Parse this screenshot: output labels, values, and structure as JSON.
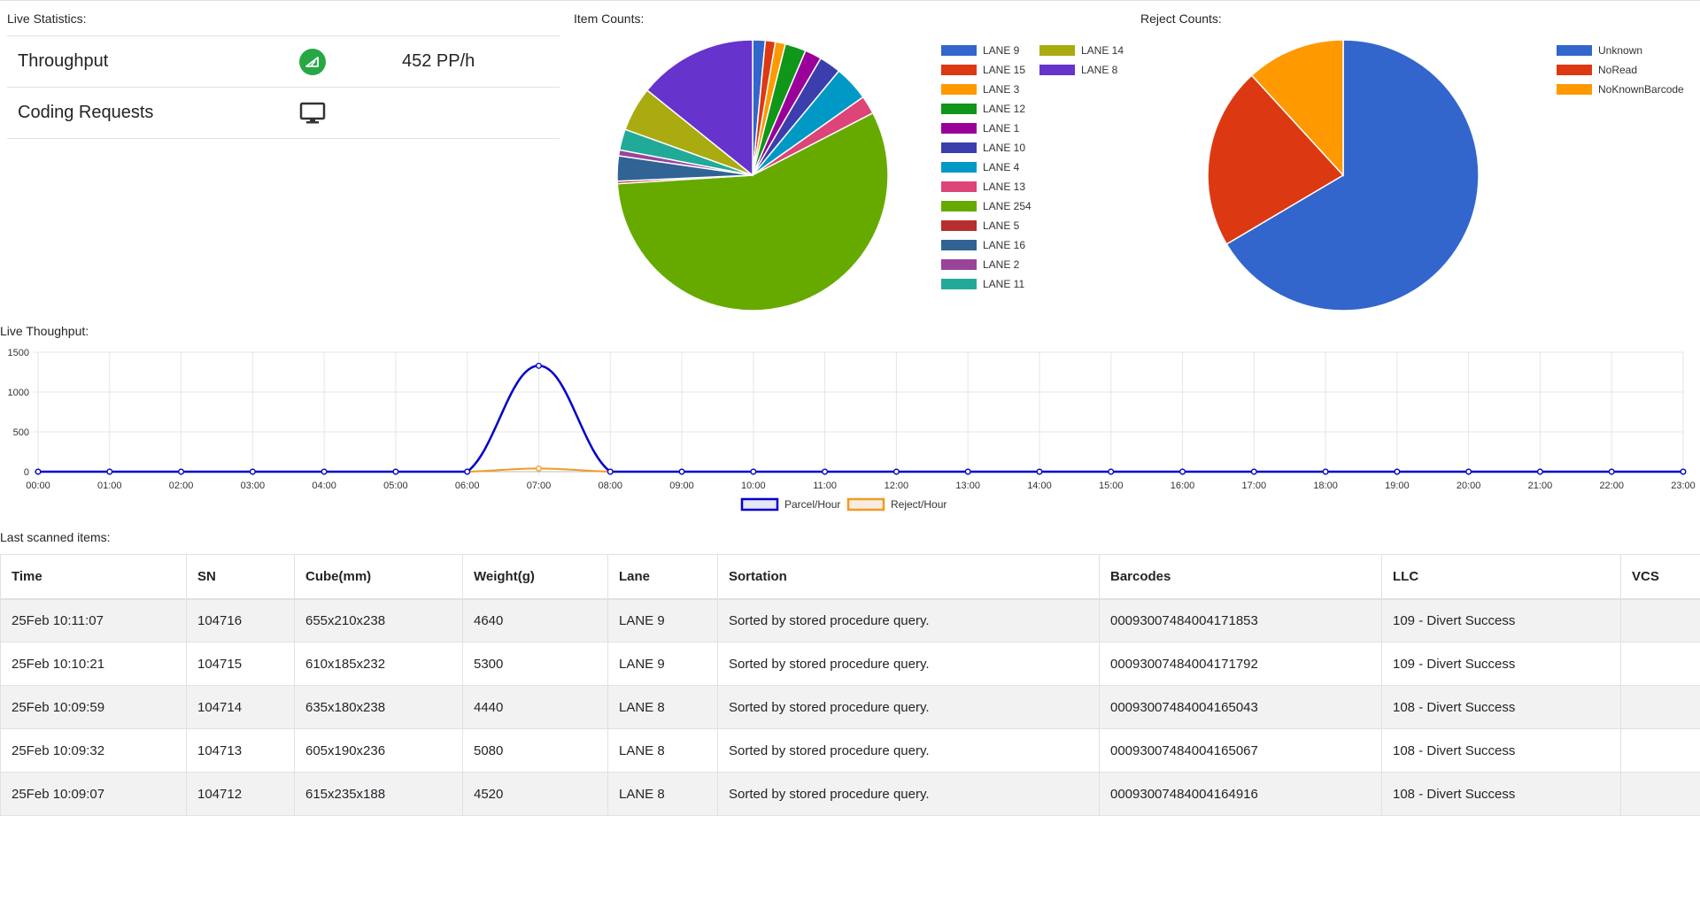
{
  "titles": {
    "live_statistics": "Live Statistics:",
    "item_counts": "Item Counts:",
    "reject_counts": "Reject Counts:",
    "live_throughput": "Live Thoughput:",
    "last_scanned": "Last scanned items:"
  },
  "stats": {
    "throughput_label": "Throughput",
    "throughput_icon": "speedometer-icon",
    "throughput_value": "452 PP/h",
    "coding_label": "Coding Requests",
    "coding_icon": "monitor-icon"
  },
  "colors": {
    "parcel_line": "#0000cc",
    "reject_line": "#f29a25",
    "badge_green": "#28a745"
  },
  "chart_data": [
    {
      "type": "pie",
      "title": "Item Counts:",
      "slices": [
        {
          "label": "LANE 9",
          "value": 1.5,
          "color": "#3366cc"
        },
        {
          "label": "LANE 15",
          "value": 1.2,
          "color": "#dc3912"
        },
        {
          "label": "LANE 3",
          "value": 1.2,
          "color": "#ff9900"
        },
        {
          "label": "LANE 12",
          "value": 2.5,
          "color": "#109618"
        },
        {
          "label": "LANE 1",
          "value": 2.0,
          "color": "#990099"
        },
        {
          "label": "LANE 10",
          "value": 2.6,
          "color": "#3b3eac"
        },
        {
          "label": "LANE 4",
          "value": 4.2,
          "color": "#0099c6"
        },
        {
          "label": "LANE 13",
          "value": 2.2,
          "color": "#dd4477"
        },
        {
          "label": "LANE 254",
          "value": 56.6,
          "color": "#66aa00"
        },
        {
          "label": "LANE 5",
          "value": 0.3,
          "color": "#b82e2e"
        },
        {
          "label": "LANE 16",
          "value": 3.0,
          "color": "#316395"
        },
        {
          "label": "LANE 2",
          "value": 0.7,
          "color": "#994499"
        },
        {
          "label": "LANE 11",
          "value": 2.5,
          "color": "#22aa99"
        },
        {
          "label": "LANE 14",
          "value": 5.3,
          "color": "#aaaa11"
        },
        {
          "label": "LANE 8",
          "value": 14.2,
          "color": "#6633cc"
        }
      ]
    },
    {
      "type": "pie",
      "title": "Reject Counts:",
      "slices": [
        {
          "label": "Unknown",
          "value": 66.5,
          "color": "#3366cc"
        },
        {
          "label": "NoRead",
          "value": 21.7,
          "color": "#dc3912"
        },
        {
          "label": "NoKnownBarcode",
          "value": 11.8,
          "color": "#ff9900"
        }
      ]
    },
    {
      "type": "line",
      "title": "Live Thoughput:",
      "x": [
        "00:00",
        "01:00",
        "02:00",
        "03:00",
        "04:00",
        "05:00",
        "06:00",
        "07:00",
        "08:00",
        "09:00",
        "10:00",
        "11:00",
        "12:00",
        "13:00",
        "14:00",
        "15:00",
        "16:00",
        "17:00",
        "18:00",
        "19:00",
        "20:00",
        "21:00",
        "22:00",
        "23:00"
      ],
      "ylim": [
        0,
        1500
      ],
      "yticks": [
        "0",
        "500",
        "1000",
        "1500"
      ],
      "grid": true,
      "legend_position": "bottom",
      "series": [
        {
          "name": "Parcel/Hour",
          "color": "#0000cc",
          "values": [
            0,
            0,
            0,
            0,
            0,
            0,
            0,
            1330,
            0,
            0,
            0,
            0,
            0,
            0,
            0,
            0,
            0,
            0,
            0,
            0,
            0,
            0,
            0,
            0
          ]
        },
        {
          "name": "Reject/Hour",
          "color": "#f29a25",
          "values": [
            0,
            0,
            0,
            0,
            0,
            0,
            0,
            40,
            0,
            0,
            0,
            0,
            0,
            0,
            0,
            0,
            0,
            0,
            0,
            0,
            0,
            0,
            0,
            0
          ]
        }
      ]
    }
  ],
  "table": {
    "headers": [
      "Time",
      "SN",
      "Cube(mm)",
      "Weight(g)",
      "Lane",
      "Sortation",
      "Barcodes",
      "LLC",
      "VCS"
    ],
    "rows": [
      [
        "25Feb 10:11:07",
        "104716",
        "655x210x238",
        "4640",
        "LANE 9",
        "Sorted by stored procedure query.",
        "00093007484004171853",
        "109 - Divert Success",
        ""
      ],
      [
        "25Feb 10:10:21",
        "104715",
        "610x185x232",
        "5300",
        "LANE 9",
        "Sorted by stored procedure query.",
        "00093007484004171792",
        "109 - Divert Success",
        ""
      ],
      [
        "25Feb 10:09:59",
        "104714",
        "635x180x238",
        "4440",
        "LANE 8",
        "Sorted by stored procedure query.",
        "00093007484004165043",
        "108 - Divert Success",
        ""
      ],
      [
        "25Feb 10:09:32",
        "104713",
        "605x190x236",
        "5080",
        "LANE 8",
        "Sorted by stored procedure query.",
        "00093007484004165067",
        "108 - Divert Success",
        ""
      ],
      [
        "25Feb 10:09:07",
        "104712",
        "615x235x188",
        "4520",
        "LANE 8",
        "Sorted by stored procedure query.",
        "00093007484004164916",
        "108 - Divert Success",
        ""
      ]
    ]
  }
}
